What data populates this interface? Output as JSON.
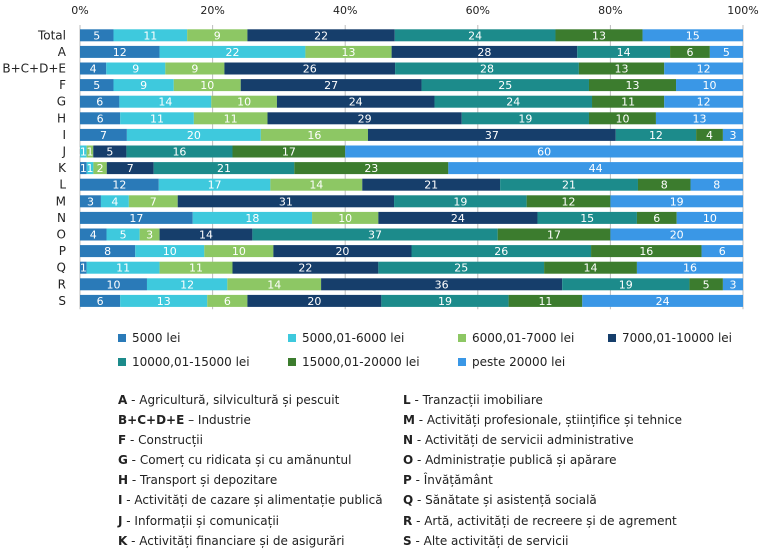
{
  "chart_data": {
    "type": "bar",
    "orientation": "horizontal",
    "stacked": true,
    "percent": true,
    "xlim": [
      0,
      100
    ],
    "x_ticks": [
      "0%",
      "20%",
      "40%",
      "60%",
      "80%",
      "100%"
    ],
    "categories": [
      "Total",
      "A",
      "B+C+D+E",
      "F",
      "G",
      "H",
      "I",
      "J",
      "K",
      "L",
      "M",
      "N",
      "O",
      "P",
      "Q",
      "R",
      "S"
    ],
    "series": [
      {
        "name": "5000 lei",
        "color": "#2a7ab8",
        "values": [
          5,
          12,
          4,
          5,
          6,
          6,
          7,
          0,
          1,
          12,
          3,
          17,
          4,
          8,
          1,
          10,
          6
        ]
      },
      {
        "name": "5000,01-6000 lei",
        "color": "#3ec9dd",
        "values": [
          11,
          22,
          9,
          9,
          14,
          11,
          20,
          1,
          1,
          17,
          4,
          18,
          5,
          10,
          11,
          12,
          13
        ]
      },
      {
        "name": "6000,01-7000 lei",
        "color": "#8dc764",
        "values": [
          9,
          13,
          9,
          10,
          10,
          11,
          16,
          1,
          2,
          14,
          7,
          10,
          3,
          10,
          11,
          14,
          6
        ]
      },
      {
        "name": "7000,01-10000 lei",
        "color": "#163e6b",
        "values": [
          22,
          28,
          26,
          27,
          24,
          29,
          37,
          5,
          7,
          21,
          31,
          24,
          14,
          20,
          22,
          36,
          20
        ]
      },
      {
        "name": "10000,01-15000 lei",
        "color": "#1c8b8b",
        "values": [
          24,
          14,
          28,
          25,
          24,
          19,
          12,
          16,
          21,
          21,
          19,
          15,
          37,
          26,
          25,
          19,
          19
        ]
      },
      {
        "name": "15000,01-20000 lei",
        "color": "#3c7c2e",
        "values": [
          13,
          6,
          13,
          13,
          11,
          10,
          4,
          17,
          23,
          8,
          12,
          6,
          17,
          16,
          14,
          5,
          11
        ]
      },
      {
        "name": "peste 20000 lei",
        "color": "#3a97e6",
        "values": [
          15,
          5,
          12,
          10,
          12,
          13,
          3,
          60,
          44,
          8,
          19,
          10,
          20,
          6,
          16,
          3,
          24
        ]
      }
    ],
    "label_values": [
      [
        "5",
        "12",
        "4",
        "5",
        "6",
        "6",
        "7",
        "0",
        "1",
        "12",
        "3",
        "17",
        "4",
        "8",
        "1",
        "10",
        "6"
      ],
      [
        "11",
        "22",
        "9",
        "9",
        "14",
        "11",
        "20",
        "1",
        "1",
        "17",
        "4",
        "18",
        "5",
        "10",
        "11",
        "12",
        "13"
      ],
      [
        "9",
        "13",
        "9",
        "10",
        "10",
        "11",
        "16",
        "1",
        "2",
        "14",
        "7",
        "10",
        "3",
        "10",
        "11",
        "14",
        "6"
      ],
      [
        "22",
        "28",
        "26",
        "27",
        "24",
        "29",
        "37",
        "5",
        "7",
        "21",
        "31",
        "24",
        "14",
        "20",
        "22",
        "36",
        "20"
      ],
      [
        "24",
        "14",
        "28",
        "25",
        "24",
        "19",
        "12",
        "16",
        "21",
        "21",
        "19",
        "15",
        "37",
        "26",
        "25",
        "19",
        "19"
      ],
      [
        "13",
        "6",
        "13",
        "13",
        "11",
        "10",
        "4",
        "17",
        "23",
        "8",
        "12",
        "6",
        "17",
        "16",
        "14",
        "5",
        "11"
      ],
      [
        "15",
        "5",
        "12",
        "10",
        "12",
        "13",
        "3",
        "60",
        "44",
        "8",
        "19",
        "10",
        "20",
        "6",
        "16",
        "3",
        "24"
      ]
    ],
    "grid": true,
    "legend_position": "bottom"
  },
  "codes_left": [
    {
      "key": "A",
      "text": " - Agricultură, silvicultură și pescuit"
    },
    {
      "key": "B+C+D+E",
      "text": " – Industrie"
    },
    {
      "key": "F",
      "text": " - Construcții"
    },
    {
      "key": "G",
      "text": " - Comerț cu ridicata și cu amănuntul"
    },
    {
      "key": "H",
      "text": " - Transport și depozitare"
    },
    {
      "key": "I",
      "text": " - Activități de cazare și alimentație publică"
    },
    {
      "key": "J",
      "text": " - Informații și comunicații"
    },
    {
      "key": "K",
      "text": " - Activități financiare și de asigurări"
    }
  ],
  "codes_right": [
    {
      "key": "L",
      "text": " - Tranzacții imobiliare"
    },
    {
      "key": "M",
      "text": " - Activități profesionale, științifice și tehnice"
    },
    {
      "key": "N",
      "text": " - Activități de servicii administrative"
    },
    {
      "key": "O",
      "text": " - Administrație publică și apărare"
    },
    {
      "key": "P",
      "text": " - Învățământ"
    },
    {
      "key": "Q",
      "text": " - Sănătate și asistență socială"
    },
    {
      "key": "R",
      "text": " - Artă, activități de recreere și de agrement"
    },
    {
      "key": "S",
      "text": " - Alte activități de servicii"
    }
  ]
}
